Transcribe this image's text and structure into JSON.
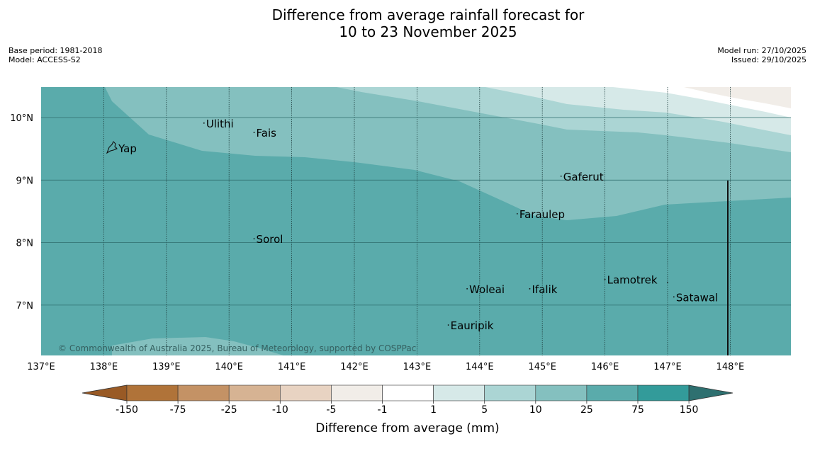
{
  "title_line1": "Difference from average rainfall forecast for",
  "title_line2": "10 to 23 November 2025",
  "meta_left": {
    "base_period": "Base period: 1981-2018",
    "model": "Model: ACCESS-S2"
  },
  "meta_right": {
    "model_run": "Model run: 27/10/2025",
    "issued": "Issued: 29/10/2025"
  },
  "map": {
    "lon_range": [
      137,
      149
    ],
    "lat_range": [
      6.2,
      10.5
    ],
    "lon_ticks": [
      "137°E",
      "138°E",
      "139°E",
      "140°E",
      "141°E",
      "142°E",
      "143°E",
      "144°E",
      "145°E",
      "146°E",
      "147°E",
      "148°E"
    ],
    "lat_ticks": [
      "10°N",
      "9°N",
      "8°N",
      "7°N"
    ],
    "places": [
      {
        "name": "Yap",
        "lon": 138.2,
        "lat": 9.5
      },
      {
        "name": "Ulithi",
        "lon": 139.6,
        "lat": 9.9
      },
      {
        "name": "Fais",
        "lon": 140.4,
        "lat": 9.75
      },
      {
        "name": "Gaferut",
        "lon": 145.3,
        "lat": 9.05
      },
      {
        "name": "Faraulep",
        "lon": 144.6,
        "lat": 8.45
      },
      {
        "name": "Sorol",
        "lon": 140.4,
        "lat": 8.05
      },
      {
        "name": "Woleai",
        "lon": 143.8,
        "lat": 7.25
      },
      {
        "name": "Ifalik",
        "lon": 144.8,
        "lat": 7.25
      },
      {
        "name": "Lamotrek",
        "lon": 146.0,
        "lat": 7.4
      },
      {
        "name": "Satawal",
        "lon": 147.1,
        "lat": 7.12
      },
      {
        "name": "Eauripik",
        "lon": 143.5,
        "lat": 6.67
      }
    ],
    "copyright": "© Commonwealth of Australia 2025, Bureau of Meteorology, supported by COSPPac"
  },
  "colorbar": {
    "label": "Difference from average (mm)",
    "ticks": [
      "-150",
      "-75",
      "-25",
      "-10",
      "-5",
      "-1",
      "1",
      "5",
      "10",
      "25",
      "75",
      "150"
    ],
    "colors": [
      "#995a25",
      "#b07339",
      "#c49265",
      "#d6b393",
      "#e8d3c2",
      "#f1ede8",
      "#ffffff",
      "#d6e9e8",
      "#abd5d4",
      "#84c0bf",
      "#5aabab",
      "#339b9a",
      "#2e7070"
    ]
  }
}
